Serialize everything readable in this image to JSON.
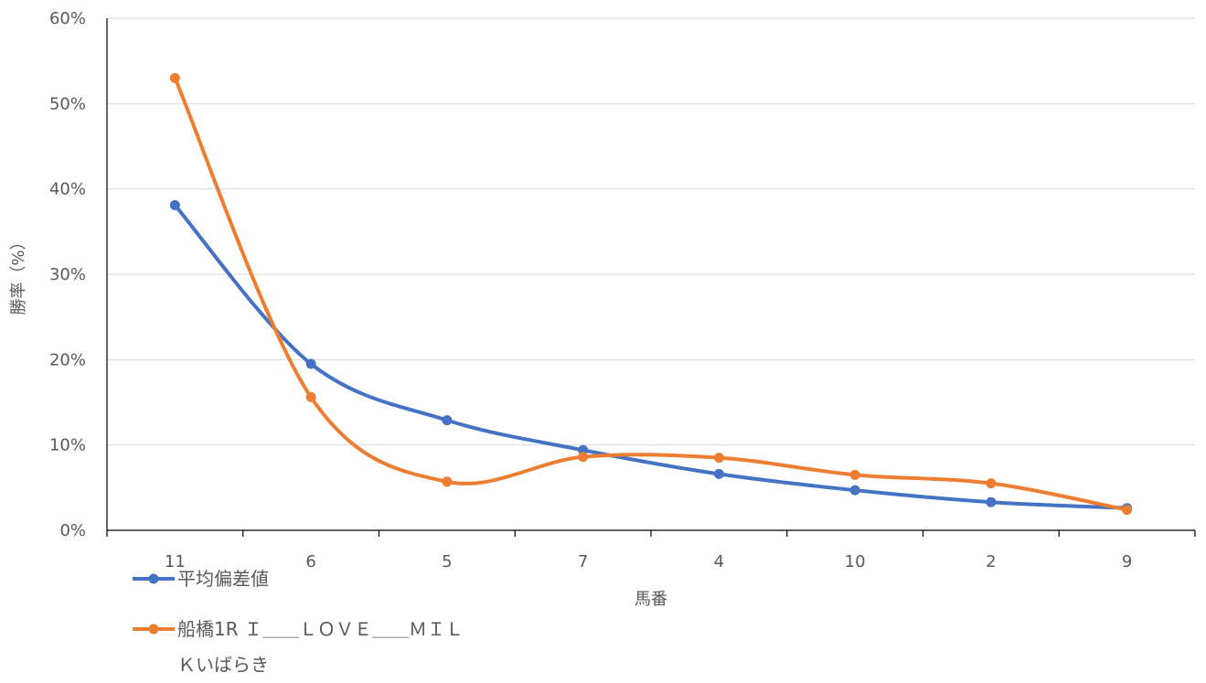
{
  "chart_data": {
    "type": "line",
    "title": "",
    "xlabel": "馬番",
    "ylabel": "勝率（%）",
    "categories": [
      "11",
      "6",
      "5",
      "7",
      "4",
      "10",
      "2",
      "9"
    ],
    "ylim": [
      0,
      60
    ],
    "yticks": [
      "0%",
      "10%",
      "20%",
      "30%",
      "40%",
      "50%",
      "60%"
    ],
    "smooth": true,
    "grid": true,
    "legend_position": "bottom-left",
    "series": [
      {
        "name": "平均偏差値",
        "color": "#4472C4",
        "values": [
          38.1,
          19.5,
          12.9,
          9.4,
          6.6,
          4.7,
          3.3,
          2.6
        ]
      },
      {
        "name": "船橋1R Ｉ＿＿ＬＯＶＥ＿＿ＭＩＬＫいばらき",
        "color": "#ED7D31",
        "values": [
          53.0,
          15.6,
          5.7,
          8.6,
          8.5,
          6.5,
          5.5,
          2.4
        ]
      }
    ]
  }
}
